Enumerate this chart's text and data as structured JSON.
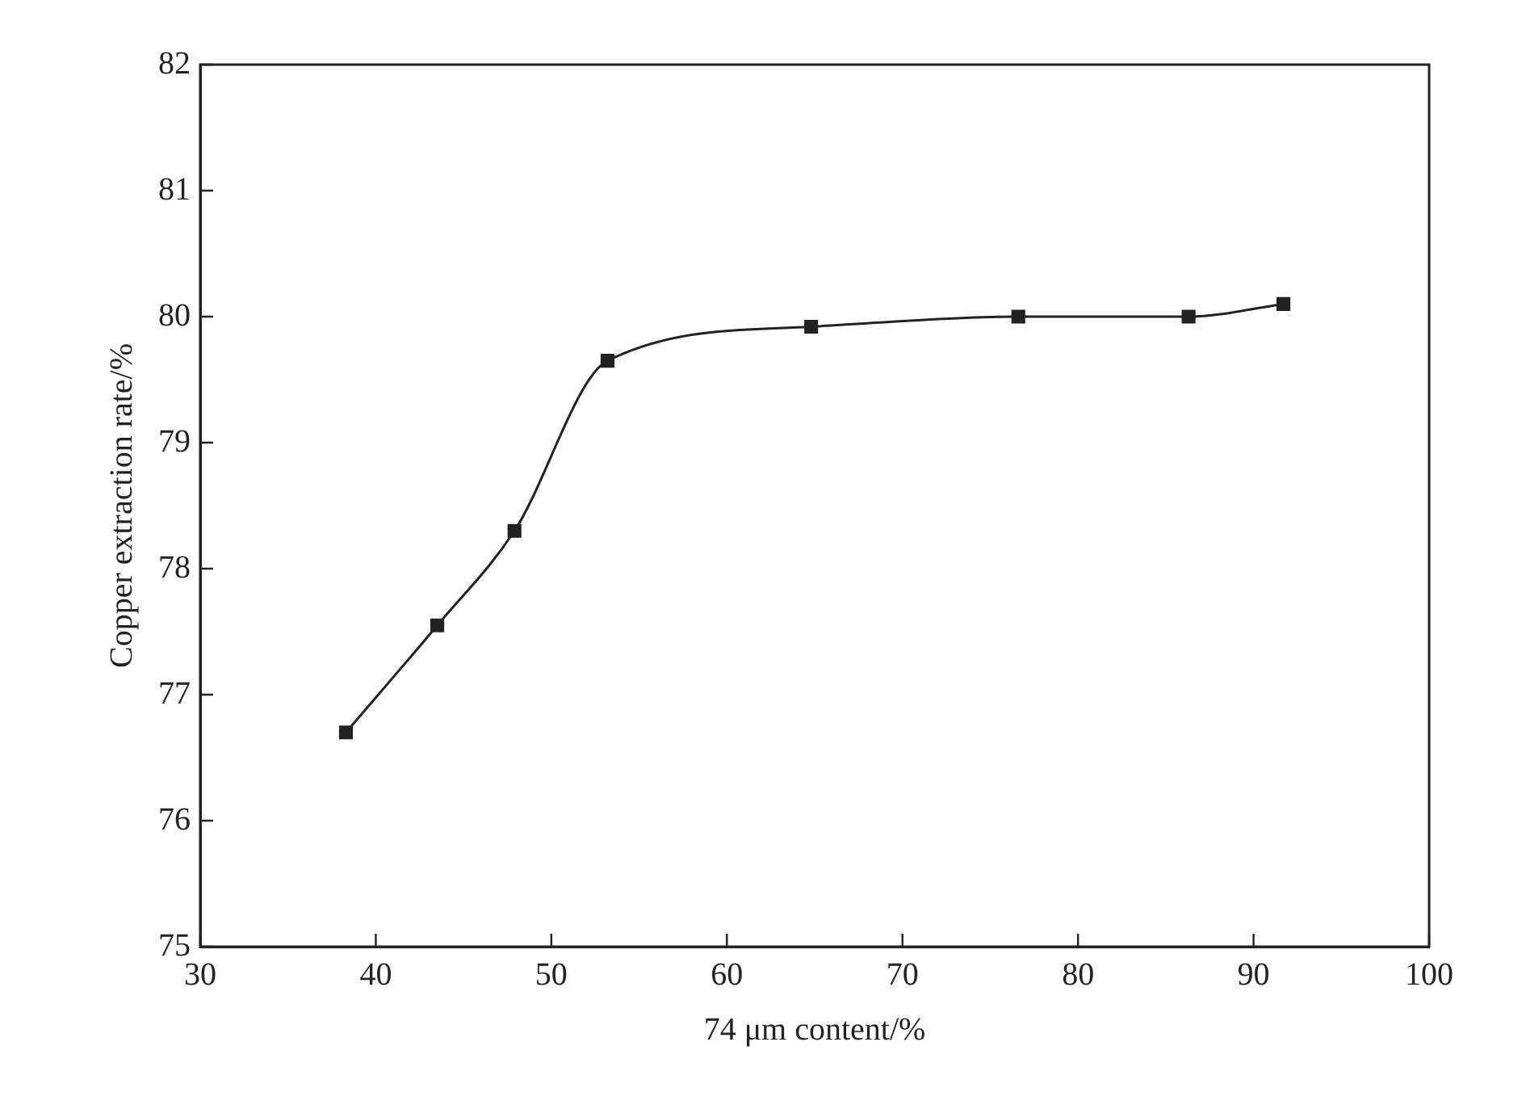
{
  "chart_data": {
    "type": "line",
    "xlabel": "74 μm content/%",
    "ylabel": "Copper extraction rate/%",
    "x": [
      38.3,
      43.5,
      47.9,
      53.2,
      64.8,
      76.6,
      86.3,
      91.7
    ],
    "series": [
      {
        "color": "#222222",
        "values": [
          76.7,
          77.55,
          78.3,
          79.65,
          79.92,
          80.0,
          80.0,
          80.1
        ]
      }
    ],
    "xlim": [
      30,
      100
    ],
    "xticks": [
      30,
      40,
      50,
      60,
      70,
      80,
      90,
      100
    ],
    "ylim": [
      75,
      82
    ],
    "yticks": [
      75,
      76,
      77,
      78,
      79,
      80,
      81,
      82
    ],
    "grid": false,
    "legend": false,
    "marker": "square",
    "line_style": "solid"
  }
}
